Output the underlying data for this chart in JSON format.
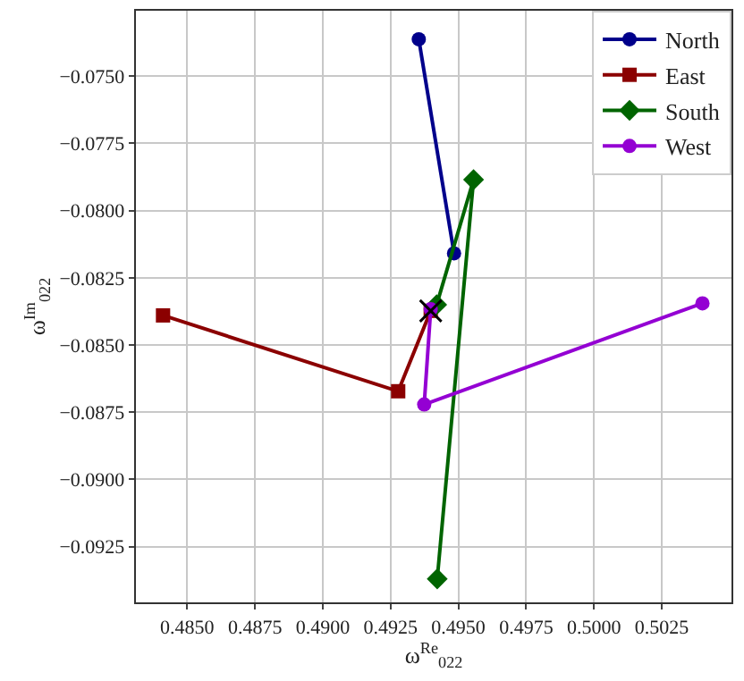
{
  "chart_data": {
    "type": "line",
    "xlabel": "ω$^{Re}$$_{022}$",
    "ylabel": "ω$^{Im}$$_{022}$",
    "series": [
      {
        "name": "North",
        "color": "#00008b",
        "marker": "circle",
        "x": [
          0.49354,
          0.49484
        ],
        "values": [
          -0.07363,
          -0.08159
        ]
      },
      {
        "name": "East",
        "color": "#8b0000",
        "marker": "square",
        "x": [
          0.48411,
          0.49278,
          0.49398
        ],
        "values": [
          -0.0839,
          -0.08672,
          -0.08373
        ]
      },
      {
        "name": "South",
        "color": "#006400",
        "marker": "diamond",
        "x": [
          0.49422,
          0.49556,
          0.4942
        ],
        "values": [
          -0.0937,
          -0.07885,
          -0.0835
        ]
      },
      {
        "name": "West",
        "color": "#9400d3",
        "marker": "circle",
        "x": [
          0.504,
          0.49374,
          0.49398
        ],
        "values": [
          -0.08345,
          -0.08721,
          -0.08367
        ]
      },
      {
        "type": "scatter",
        "color": "#000000",
        "marker": "cross",
        "x": [
          0.49398
        ],
        "values": [
          -0.08373
        ]
      }
    ],
    "xlim": [
      0.48311,
      0.50507
    ],
    "ylim": [
      -0.09457,
      -0.07257
    ],
    "xticks": [
      {
        "value": 0.485,
        "label": "0.4850"
      },
      {
        "value": 0.4875,
        "label": "0.4875"
      },
      {
        "value": 0.49,
        "label": "0.4900"
      },
      {
        "value": 0.4925,
        "label": "0.4925"
      },
      {
        "value": 0.495,
        "label": "0.4950"
      },
      {
        "value": 0.4975,
        "label": "0.4975"
      },
      {
        "value": 0.5,
        "label": "0.5000"
      },
      {
        "value": 0.5025,
        "label": "0.5025"
      }
    ],
    "yticks": [
      {
        "value": -0.075,
        "label": "−0.0750"
      },
      {
        "value": -0.0775,
        "label": "−0.0775"
      },
      {
        "value": -0.08,
        "label": "−0.0800"
      },
      {
        "value": -0.0825,
        "label": "−0.0825"
      },
      {
        "value": -0.085,
        "label": "−0.0850"
      },
      {
        "value": -0.0875,
        "label": "−0.0875"
      },
      {
        "value": -0.09,
        "label": "−0.0900"
      },
      {
        "value": -0.0925,
        "label": "−0.0925"
      }
    ],
    "grid": true,
    "legend": "top right"
  }
}
